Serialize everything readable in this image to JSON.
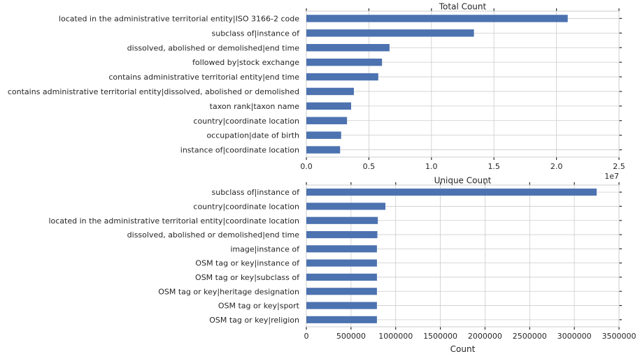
{
  "chart_data": [
    {
      "type": "bar",
      "orientation": "horizontal",
      "title": "Total Count",
      "xlabel": "",
      "ylabel": "",
      "xlim": [
        0,
        25000000
      ],
      "xticks": [
        0,
        5000000,
        10000000,
        15000000,
        20000000,
        25000000
      ],
      "xtick_labels": [
        "0.0",
        "0.5",
        "1.0",
        "1.5",
        "2.0",
        "2.5"
      ],
      "offset_label": "1e7",
      "grid": true,
      "color": "#4c72b0",
      "categories": [
        "located in the administrative territorial entity|ISO 3166-2 code",
        "subclass of|instance of",
        "dissolved, abolished or demolished|end time",
        "followed by|stock exchange",
        "contains administrative territorial entity|end time",
        "contains administrative territorial entity|dissolved, abolished or demolished",
        "taxon rank|taxon name",
        "country|coordinate location",
        "occupation|date of birth",
        "instance of|coordinate location"
      ],
      "values": [
        20900000,
        13400000,
        6650000,
        6050000,
        5750000,
        3800000,
        3580000,
        3250000,
        2780000,
        2700000
      ]
    },
    {
      "type": "bar",
      "orientation": "horizontal",
      "title": "Unique Count",
      "xlabel": "Count",
      "ylabel": "",
      "xlim": [
        0,
        3500000
      ],
      "xticks": [
        0,
        500000,
        1000000,
        1500000,
        2000000,
        2500000,
        3000000,
        3500000
      ],
      "xtick_labels": [
        "0",
        "500000",
        "1000000",
        "1500000",
        "2000000",
        "2500000",
        "3000000",
        "3500000"
      ],
      "grid": true,
      "color": "#4c72b0",
      "categories": [
        "subclass of|instance of",
        "country|coordinate location",
        "located in the administrative territorial entity|coordinate location",
        "dissolved, abolished or demolished|end time",
        "image|instance of",
        "OSM tag or key|instance of",
        "OSM tag or key|subclass of",
        "OSM tag or key|heritage designation",
        "OSM tag or key|sport",
        "OSM tag or key|religion"
      ],
      "values": [
        3250000,
        885000,
        800000,
        795000,
        790000,
        790000,
        790000,
        790000,
        790000,
        790000
      ]
    }
  ]
}
